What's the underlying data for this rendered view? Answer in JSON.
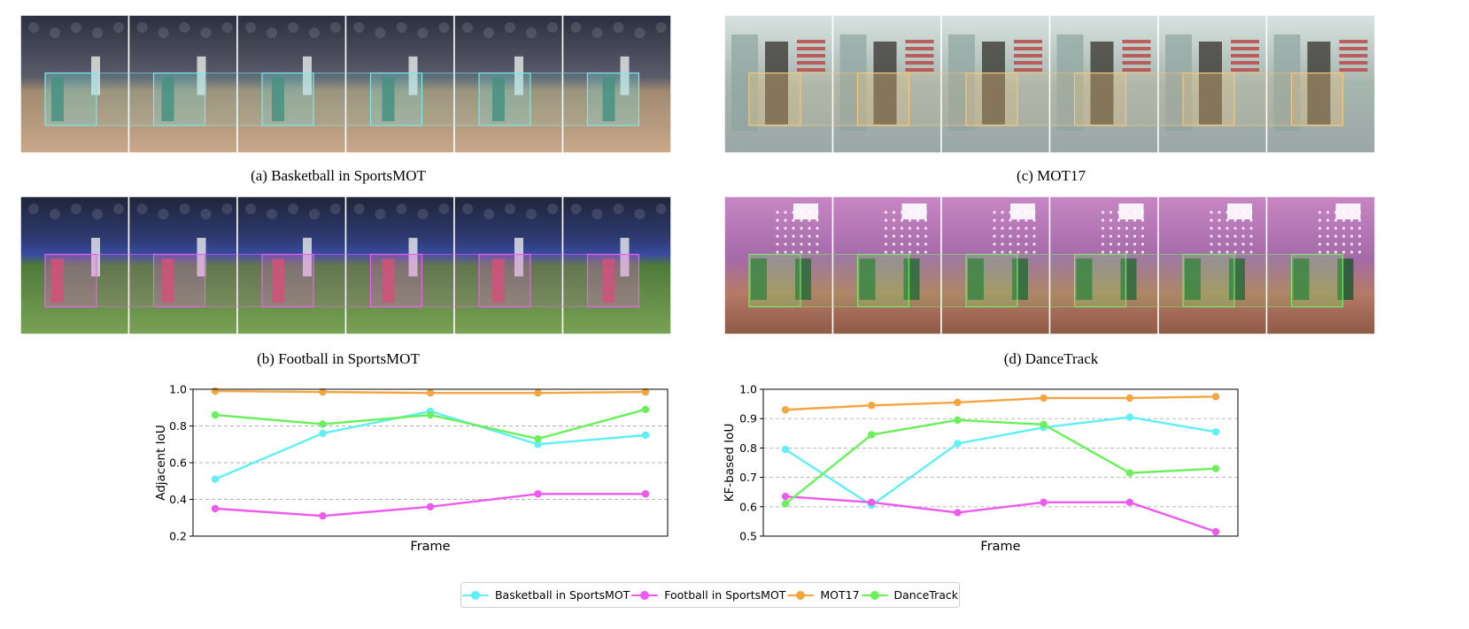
{
  "panels": {
    "a": {
      "caption": "(a) Basketball in SportsMOT",
      "scene": "court",
      "box_color": "#7de8e8"
    },
    "b": {
      "caption": "(b) Football in SportsMOT",
      "scene": "pitch",
      "box_color": "#e666e6"
    },
    "c": {
      "caption": "(c) MOT17",
      "scene": "street",
      "box_color": "#f5c87a"
    },
    "d": {
      "caption": "(d) DanceTrack",
      "scene": "stage",
      "box_color": "#7fe36a"
    }
  },
  "legend": [
    {
      "label": "Basketball in SportsMOT",
      "color": "#5ff0f5"
    },
    {
      "label": "Football in SportsMOT",
      "color": "#ee5aee"
    },
    {
      "label": "MOT17",
      "color": "#f3a640"
    },
    {
      "label": "DanceTrack",
      "color": "#6af05a"
    }
  ],
  "chart_data": [
    {
      "type": "line",
      "xlabel": "Frame",
      "ylabel": "Adjacent IoU",
      "ylim": [
        0.2,
        1.0
      ],
      "yticks": [
        "0.2",
        "0.4",
        "0.6",
        "0.8",
        "1.0"
      ],
      "grid": "horizontal dashed",
      "x": [
        1,
        2,
        3,
        4,
        5
      ],
      "series": [
        {
          "name": "Basketball in SportsMOT",
          "color": "#5ff0f5",
          "values": [
            0.51,
            0.76,
            0.88,
            0.7,
            0.75
          ]
        },
        {
          "name": "Football in SportsMOT",
          "color": "#ee5aee",
          "values": [
            0.35,
            0.31,
            0.36,
            0.43,
            0.43
          ]
        },
        {
          "name": "MOT17",
          "color": "#f3a640",
          "values": [
            0.99,
            0.985,
            0.98,
            0.98,
            0.985
          ]
        },
        {
          "name": "DanceTrack",
          "color": "#6af05a",
          "values": [
            0.86,
            0.81,
            0.86,
            0.73,
            0.89
          ]
        }
      ]
    },
    {
      "type": "line",
      "xlabel": "Frame",
      "ylabel": "KF-based IoU",
      "ylim": [
        0.5,
        1.0
      ],
      "yticks": [
        "0.5",
        "0.6",
        "0.7",
        "0.8",
        "0.9",
        "1.0"
      ],
      "grid": "horizontal dashed",
      "x": [
        1,
        2,
        3,
        4,
        5,
        6
      ],
      "series": [
        {
          "name": "Basketball in SportsMOT",
          "color": "#5ff0f5",
          "values": [
            0.795,
            0.605,
            0.815,
            0.87,
            0.905,
            0.855
          ]
        },
        {
          "name": "Football in SportsMOT",
          "color": "#ee5aee",
          "values": [
            0.635,
            0.615,
            0.58,
            0.615,
            0.615,
            0.515
          ]
        },
        {
          "name": "MOT17",
          "color": "#f3a640",
          "values": [
            0.93,
            0.945,
            0.955,
            0.97,
            0.97,
            0.975
          ]
        },
        {
          "name": "DanceTrack",
          "color": "#6af05a",
          "values": [
            0.61,
            0.845,
            0.895,
            0.88,
            0.715,
            0.73
          ]
        }
      ]
    }
  ]
}
